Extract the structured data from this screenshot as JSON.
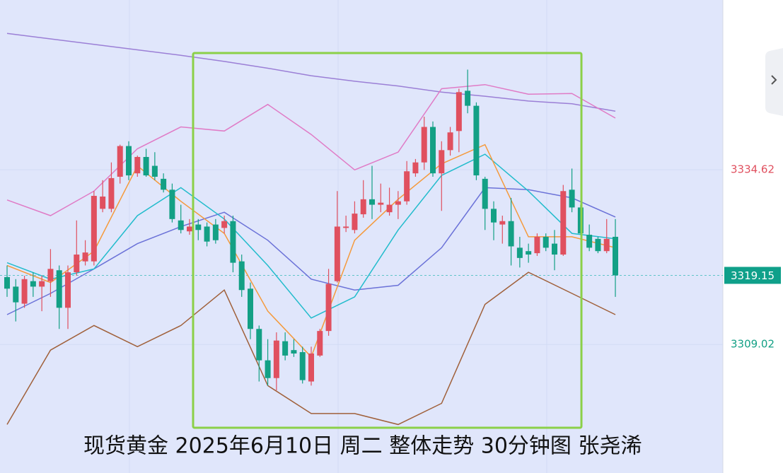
{
  "chart_data": {
    "type": "candlestick",
    "ylim": [
      3290.19,
      3359.5
    ],
    "yticks": [
      3309.02,
      3334.62
    ],
    "ytick_colors": [
      "#13a085",
      "#e0505f"
    ],
    "last_price": 3319.15,
    "last_price_color": "#0fa08a",
    "up_color": "#e0505f",
    "down_color": "#13a085",
    "open": [
      3318.9,
      3317.5,
      3315.0,
      3318.3,
      3317.5,
      3318.3,
      3319.9,
      3314.4,
      3319.6,
      3321.2,
      3321.2,
      3328.9,
      3328.9,
      3333.6,
      3338.1,
      3334.1,
      3336.5,
      3335.2,
      3333.3,
      3331.7,
      3327.2,
      3325.6,
      3326.6,
      3326.3,
      3326.6,
      3326.1,
      3327.1,
      3321.2,
      3317.2,
      3311.3,
      3306.7,
      3304.1,
      3309.5,
      3308.2,
      3307.9,
      3303.6,
      3307.4,
      3311.0,
      3318.3,
      3326.1,
      3325.8,
      3328.1,
      3330.3,
      3329.5,
      3328.4,
      3329.5,
      3330.0,
      3334.1,
      3335.7,
      3340.9,
      3334.1,
      3337.5,
      3340.3,
      3346.2,
      3344.0,
      3333.3,
      3328.9,
      3326.6,
      3327.1,
      3323.2,
      3322.7,
      3322.4,
      3324.8,
      3323.8,
      3322.2,
      3331.7,
      3329.1,
      3325.1,
      3324.5,
      3322.7,
      3324.8
    ],
    "close": [
      3317.2,
      3315.2,
      3318.6,
      3317.5,
      3318.3,
      3320.1,
      3314.4,
      3319.6,
      3322.2,
      3322.5,
      3330.8,
      3330.7,
      3333.4,
      3338.1,
      3333.8,
      3336.5,
      3333.8,
      3333.6,
      3331.7,
      3327.4,
      3325.8,
      3326.3,
      3325.8,
      3324.1,
      3324.3,
      3327.1,
      3321.0,
      3317.0,
      3311.3,
      3306.7,
      3304.1,
      3309.6,
      3307.4,
      3307.7,
      3303.8,
      3307.7,
      3311.0,
      3317.9,
      3326.3,
      3326.3,
      3328.2,
      3330.3,
      3329.5,
      3329.8,
      3329.5,
      3330.0,
      3334.4,
      3335.7,
      3340.9,
      3334.1,
      3337.5,
      3340.1,
      3346.0,
      3344.0,
      3333.8,
      3328.9,
      3326.9,
      3327.1,
      3323.4,
      3321.7,
      3322.2,
      3324.8,
      3323.2,
      3322.2,
      3331.5,
      3329.1,
      3325.3,
      3323.2,
      3322.7,
      3324.5,
      3319.15
    ],
    "high": [
      3320.6,
      3318.6,
      3319.1,
      3319.6,
      3319.1,
      3323.0,
      3320.6,
      3320.6,
      3327.2,
      3324.3,
      3331.5,
      3333.1,
      3335.7,
      3338.3,
      3338.8,
      3336.7,
      3337.7,
      3337.2,
      3334.1,
      3332.6,
      3329.5,
      3327.4,
      3327.4,
      3326.9,
      3327.4,
      3327.9,
      3327.9,
      3322.2,
      3318.1,
      3311.8,
      3309.8,
      3310.8,
      3310.8,
      3309.8,
      3308.7,
      3308.7,
      3311.3,
      3320.1,
      3331.5,
      3327.9,
      3330.0,
      3333.1,
      3335.2,
      3332.6,
      3332.0,
      3331.5,
      3335.9,
      3336.2,
      3342.4,
      3341.7,
      3338.8,
      3340.9,
      3346.5,
      3349.3,
      3344.5,
      3333.6,
      3330.0,
      3327.9,
      3330.5,
      3324.8,
      3323.8,
      3325.3,
      3325.3,
      3325.8,
      3332.4,
      3334.8,
      3329.5,
      3326.6,
      3324.8,
      3327.4,
      3327.4
    ],
    "low": [
      3316.0,
      3312.4,
      3314.4,
      3316.0,
      3313.9,
      3316.0,
      3311.3,
      3311.3,
      3319.1,
      3320.6,
      3320.6,
      3328.4,
      3328.4,
      3332.6,
      3333.1,
      3333.6,
      3333.6,
      3333.1,
      3331.3,
      3326.9,
      3325.3,
      3325.1,
      3324.3,
      3323.4,
      3323.8,
      3325.3,
      3319.6,
      3316.0,
      3309.8,
      3303.6,
      3303.0,
      3302.3,
      3306.7,
      3307.2,
      3303.3,
      3303.0,
      3307.2,
      3310.3,
      3318.1,
      3325.5,
      3325.3,
      3327.6,
      3327.4,
      3328.4,
      3327.9,
      3327.4,
      3329.5,
      3333.6,
      3334.6,
      3333.6,
      3328.6,
      3336.7,
      3337.2,
      3342.9,
      3333.1,
      3325.8,
      3324.3,
      3323.8,
      3320.6,
      3320.3,
      3321.0,
      3322.0,
      3322.7,
      3319.9,
      3322.0,
      3328.4,
      3325.1,
      3322.7,
      3322.4,
      3322.4,
      3316.0
    ],
    "line_x": [
      0,
      5,
      10,
      15,
      20,
      25,
      30,
      35,
      40,
      45,
      50,
      55,
      60,
      65,
      70
    ],
    "lines": [
      {
        "color": "#9b7fd6",
        "values": [
          3354.6,
          3353.8,
          3353.0,
          3352.2,
          3351.4,
          3350.5,
          3349.5,
          3348.4,
          3347.6,
          3346.9,
          3346.0,
          3345.4,
          3344.7,
          3344.3,
          3343.2
        ]
      },
      {
        "color": "#e07bc6",
        "values": [
          3330.2,
          3327.9,
          3331.5,
          3337.7,
          3340.9,
          3340.3,
          3344.2,
          3339.8,
          3334.6,
          3337.2,
          3346.5,
          3347.1,
          3345.7,
          3345.8,
          3342.2
        ]
      },
      {
        "color": "#a0603a",
        "values": [
          3297.3,
          3308.2,
          3311.8,
          3308.7,
          3311.8,
          3317.0,
          3303.0,
          3298.9,
          3298.9,
          3297.3,
          3300.4,
          3314.9,
          3319.6,
          3316.5,
          3313.4
        ]
      },
      {
        "color": "#6b72d8",
        "values": [
          3313.4,
          3316.5,
          3320.1,
          3323.8,
          3326.3,
          3328.4,
          3324.3,
          3318.6,
          3317.0,
          3317.7,
          3323.2,
          3332.0,
          3331.7,
          3330.5,
          3327.7
        ]
      },
      {
        "color": "#22bccc",
        "values": [
          3321.0,
          3318.6,
          3320.1,
          3327.9,
          3332.0,
          3327.4,
          3320.6,
          3312.9,
          3316.0,
          3325.8,
          3333.8,
          3336.9,
          3331.5,
          3325.3,
          3324.5
        ]
      },
      {
        "color": "#f59a3c",
        "values": [
          3320.6,
          3318.1,
          3322.7,
          3335.2,
          3330.0,
          3325.3,
          3313.9,
          3307.2,
          3324.3,
          3330.3,
          3335.5,
          3338.3,
          3324.8,
          3324.8,
          3323.2
        ]
      }
    ],
    "caption": "现货黄金 2025年6月10日 周二 整体走势 30分钟图 张尧浠"
  }
}
